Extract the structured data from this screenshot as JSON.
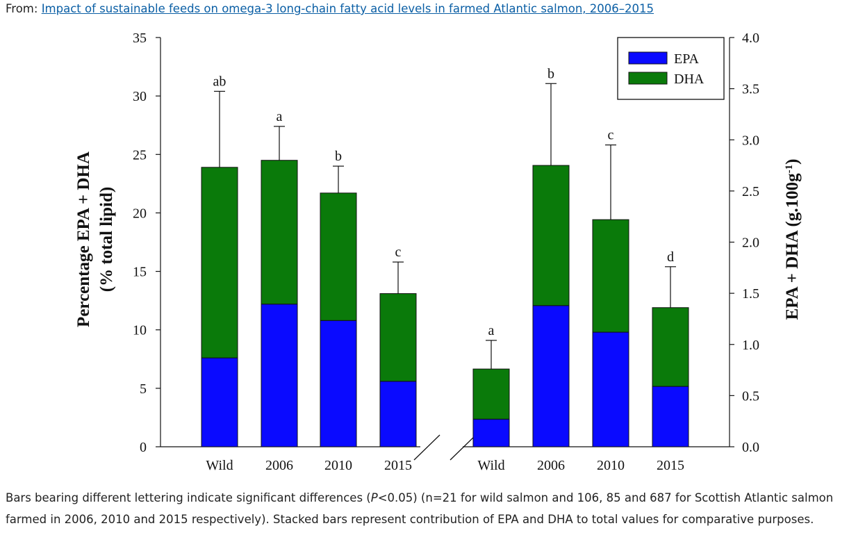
{
  "source": {
    "prefix": "From: ",
    "link_text": "Impact of sustainable feeds on omega-3 long-chain fatty acid levels in farmed Atlantic salmon, 2006–2015"
  },
  "caption": {
    "part1": "Bars bearing different lettering indicate significant differences (",
    "p_symbol": "P",
    "part2": "<0.05) (n=21 for wild salmon and 106, 85 and 687 for Scottish Atlantic salmon farmed in 2006, 2010 and 2015 respectively). Stacked bars represent contribution of EPA and DHA to total values for comparative purposes."
  },
  "colors": {
    "epa": "#0a0aff",
    "dha": "#0a7a0a"
  },
  "chart_data": {
    "type": "bar",
    "stacked": true,
    "legend": {
      "position": "top-right",
      "entries": [
        "EPA",
        "DHA"
      ]
    },
    "left_axis": {
      "label_line1": "Percentage EPA + DHA",
      "label_line2": "(% total lipid)",
      "ylim": [
        0,
        35
      ],
      "ticks": [
        "0",
        "5",
        "10",
        "15",
        "20",
        "25",
        "30",
        "35"
      ]
    },
    "right_axis": {
      "label": "EPA + DHA (g.100g",
      "label_sup": "-1",
      "label_end": ")",
      "ylim": [
        0,
        4.0
      ],
      "ticks": [
        "0.0",
        "0.5",
        "1.0",
        "1.5",
        "2.0",
        "2.5",
        "3.0",
        "3.5",
        "4.0"
      ]
    },
    "groups": [
      {
        "axis": "left",
        "categories": [
          "Wild",
          "2006",
          "2010",
          "2015"
        ],
        "epa": [
          7.6,
          12.2,
          10.8,
          5.6
        ],
        "dha": [
          16.3,
          12.3,
          10.9,
          7.5
        ],
        "error_top": [
          30.4,
          27.4,
          24.0,
          15.8
        ],
        "letters": [
          "ab",
          "a",
          "b",
          "c"
        ]
      },
      {
        "axis": "right",
        "categories": [
          "Wild",
          "2006",
          "2010",
          "2015"
        ],
        "epa": [
          0.27,
          1.38,
          1.12,
          0.59
        ],
        "dha": [
          0.49,
          1.37,
          1.1,
          0.77
        ],
        "error_top": [
          1.04,
          3.55,
          2.95,
          1.76
        ],
        "letters": [
          "a",
          "b",
          "c",
          "d"
        ]
      }
    ]
  }
}
